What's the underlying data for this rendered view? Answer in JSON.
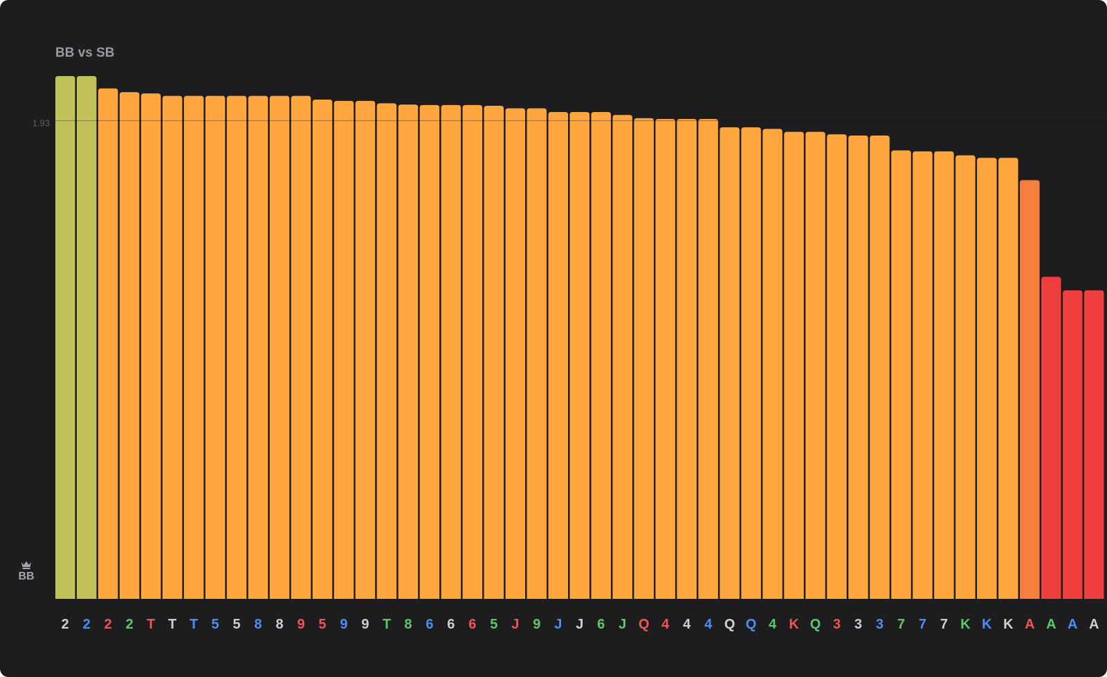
{
  "title": "BB vs SB",
  "hero": {
    "label": "BB",
    "icon": "crown-icon"
  },
  "suit_colors": {
    "spade": "#d0d0d4",
    "heart": "#f05454",
    "diamond": "#4d8ef5",
    "club": "#5cc96a"
  },
  "bar_colors": {
    "olive": "#c2c25a",
    "orange": "#ffa63f",
    "dark_orange": "#f77f3e",
    "red": "#ef3e3e"
  },
  "chart_data": {
    "type": "bar",
    "title": "BB vs SB",
    "xlabel": "",
    "ylabel": "",
    "reference_line": {
      "value": 1.93,
      "label": "1.93"
    },
    "ylim": [
      0,
      2.11
    ],
    "grid": false,
    "legend": "none",
    "bars": [
      {
        "rank": "2",
        "suit": "spade",
        "value": 2.11,
        "color": "olive"
      },
      {
        "rank": "2",
        "suit": "diamond",
        "value": 2.11,
        "color": "olive"
      },
      {
        "rank": "2",
        "suit": "heart",
        "value": 2.06,
        "color": "orange"
      },
      {
        "rank": "2",
        "suit": "club",
        "value": 2.045,
        "color": "orange"
      },
      {
        "rank": "T",
        "suit": "heart",
        "value": 2.04,
        "color": "orange"
      },
      {
        "rank": "T",
        "suit": "spade",
        "value": 2.03,
        "color": "orange"
      },
      {
        "rank": "T",
        "suit": "diamond",
        "value": 2.03,
        "color": "orange"
      },
      {
        "rank": "5",
        "suit": "diamond",
        "value": 2.03,
        "color": "orange"
      },
      {
        "rank": "5",
        "suit": "spade",
        "value": 2.03,
        "color": "orange"
      },
      {
        "rank": "8",
        "suit": "diamond",
        "value": 2.03,
        "color": "orange"
      },
      {
        "rank": "8",
        "suit": "spade",
        "value": 2.03,
        "color": "orange"
      },
      {
        "rank": "9",
        "suit": "heart",
        "value": 2.03,
        "color": "orange"
      },
      {
        "rank": "5",
        "suit": "heart",
        "value": 2.015,
        "color": "orange"
      },
      {
        "rank": "9",
        "suit": "diamond",
        "value": 2.01,
        "color": "orange"
      },
      {
        "rank": "9",
        "suit": "spade",
        "value": 2.01,
        "color": "orange"
      },
      {
        "rank": "T",
        "suit": "club",
        "value": 2.0,
        "color": "orange"
      },
      {
        "rank": "8",
        "suit": "club",
        "value": 1.995,
        "color": "orange"
      },
      {
        "rank": "6",
        "suit": "diamond",
        "value": 1.993,
        "color": "orange"
      },
      {
        "rank": "6",
        "suit": "spade",
        "value": 1.993,
        "color": "orange"
      },
      {
        "rank": "6",
        "suit": "heart",
        "value": 1.993,
        "color": "orange"
      },
      {
        "rank": "5",
        "suit": "club",
        "value": 1.99,
        "color": "orange"
      },
      {
        "rank": "J",
        "suit": "heart",
        "value": 1.98,
        "color": "orange"
      },
      {
        "rank": "9",
        "suit": "club",
        "value": 1.98,
        "color": "orange"
      },
      {
        "rank": "J",
        "suit": "diamond",
        "value": 1.965,
        "color": "orange"
      },
      {
        "rank": "J",
        "suit": "spade",
        "value": 1.965,
        "color": "orange"
      },
      {
        "rank": "6",
        "suit": "club",
        "value": 1.965,
        "color": "orange"
      },
      {
        "rank": "J",
        "suit": "club",
        "value": 1.953,
        "color": "orange"
      },
      {
        "rank": "Q",
        "suit": "heart",
        "value": 1.94,
        "color": "orange"
      },
      {
        "rank": "4",
        "suit": "heart",
        "value": 1.937,
        "color": "orange"
      },
      {
        "rank": "4",
        "suit": "spade",
        "value": 1.937,
        "color": "orange"
      },
      {
        "rank": "4",
        "suit": "diamond",
        "value": 1.937,
        "color": "orange"
      },
      {
        "rank": "Q",
        "suit": "spade",
        "value": 1.903,
        "color": "orange"
      },
      {
        "rank": "Q",
        "suit": "diamond",
        "value": 1.903,
        "color": "orange"
      },
      {
        "rank": "4",
        "suit": "club",
        "value": 1.897,
        "color": "orange"
      },
      {
        "rank": "K",
        "suit": "heart",
        "value": 1.885,
        "color": "orange"
      },
      {
        "rank": "Q",
        "suit": "club",
        "value": 1.885,
        "color": "orange"
      },
      {
        "rank": "3",
        "suit": "heart",
        "value": 1.875,
        "color": "orange"
      },
      {
        "rank": "3",
        "suit": "spade",
        "value": 1.87,
        "color": "orange"
      },
      {
        "rank": "3",
        "suit": "diamond",
        "value": 1.87,
        "color": "orange"
      },
      {
        "rank": "7",
        "suit": "club",
        "value": 1.81,
        "color": "orange"
      },
      {
        "rank": "7",
        "suit": "diamond",
        "value": 1.806,
        "color": "orange"
      },
      {
        "rank": "7",
        "suit": "spade",
        "value": 1.806,
        "color": "orange"
      },
      {
        "rank": "K",
        "suit": "club",
        "value": 1.79,
        "color": "orange"
      },
      {
        "rank": "K",
        "suit": "diamond",
        "value": 1.78,
        "color": "orange"
      },
      {
        "rank": "K",
        "suit": "spade",
        "value": 1.78,
        "color": "orange"
      },
      {
        "rank": "A",
        "suit": "heart",
        "value": 1.69,
        "color": "dark_orange"
      },
      {
        "rank": "A",
        "suit": "club",
        "value": 1.3,
        "color": "red"
      },
      {
        "rank": "A",
        "suit": "diamond",
        "value": 1.245,
        "color": "red"
      },
      {
        "rank": "A",
        "suit": "spade",
        "value": 1.245,
        "color": "red"
      }
    ]
  }
}
